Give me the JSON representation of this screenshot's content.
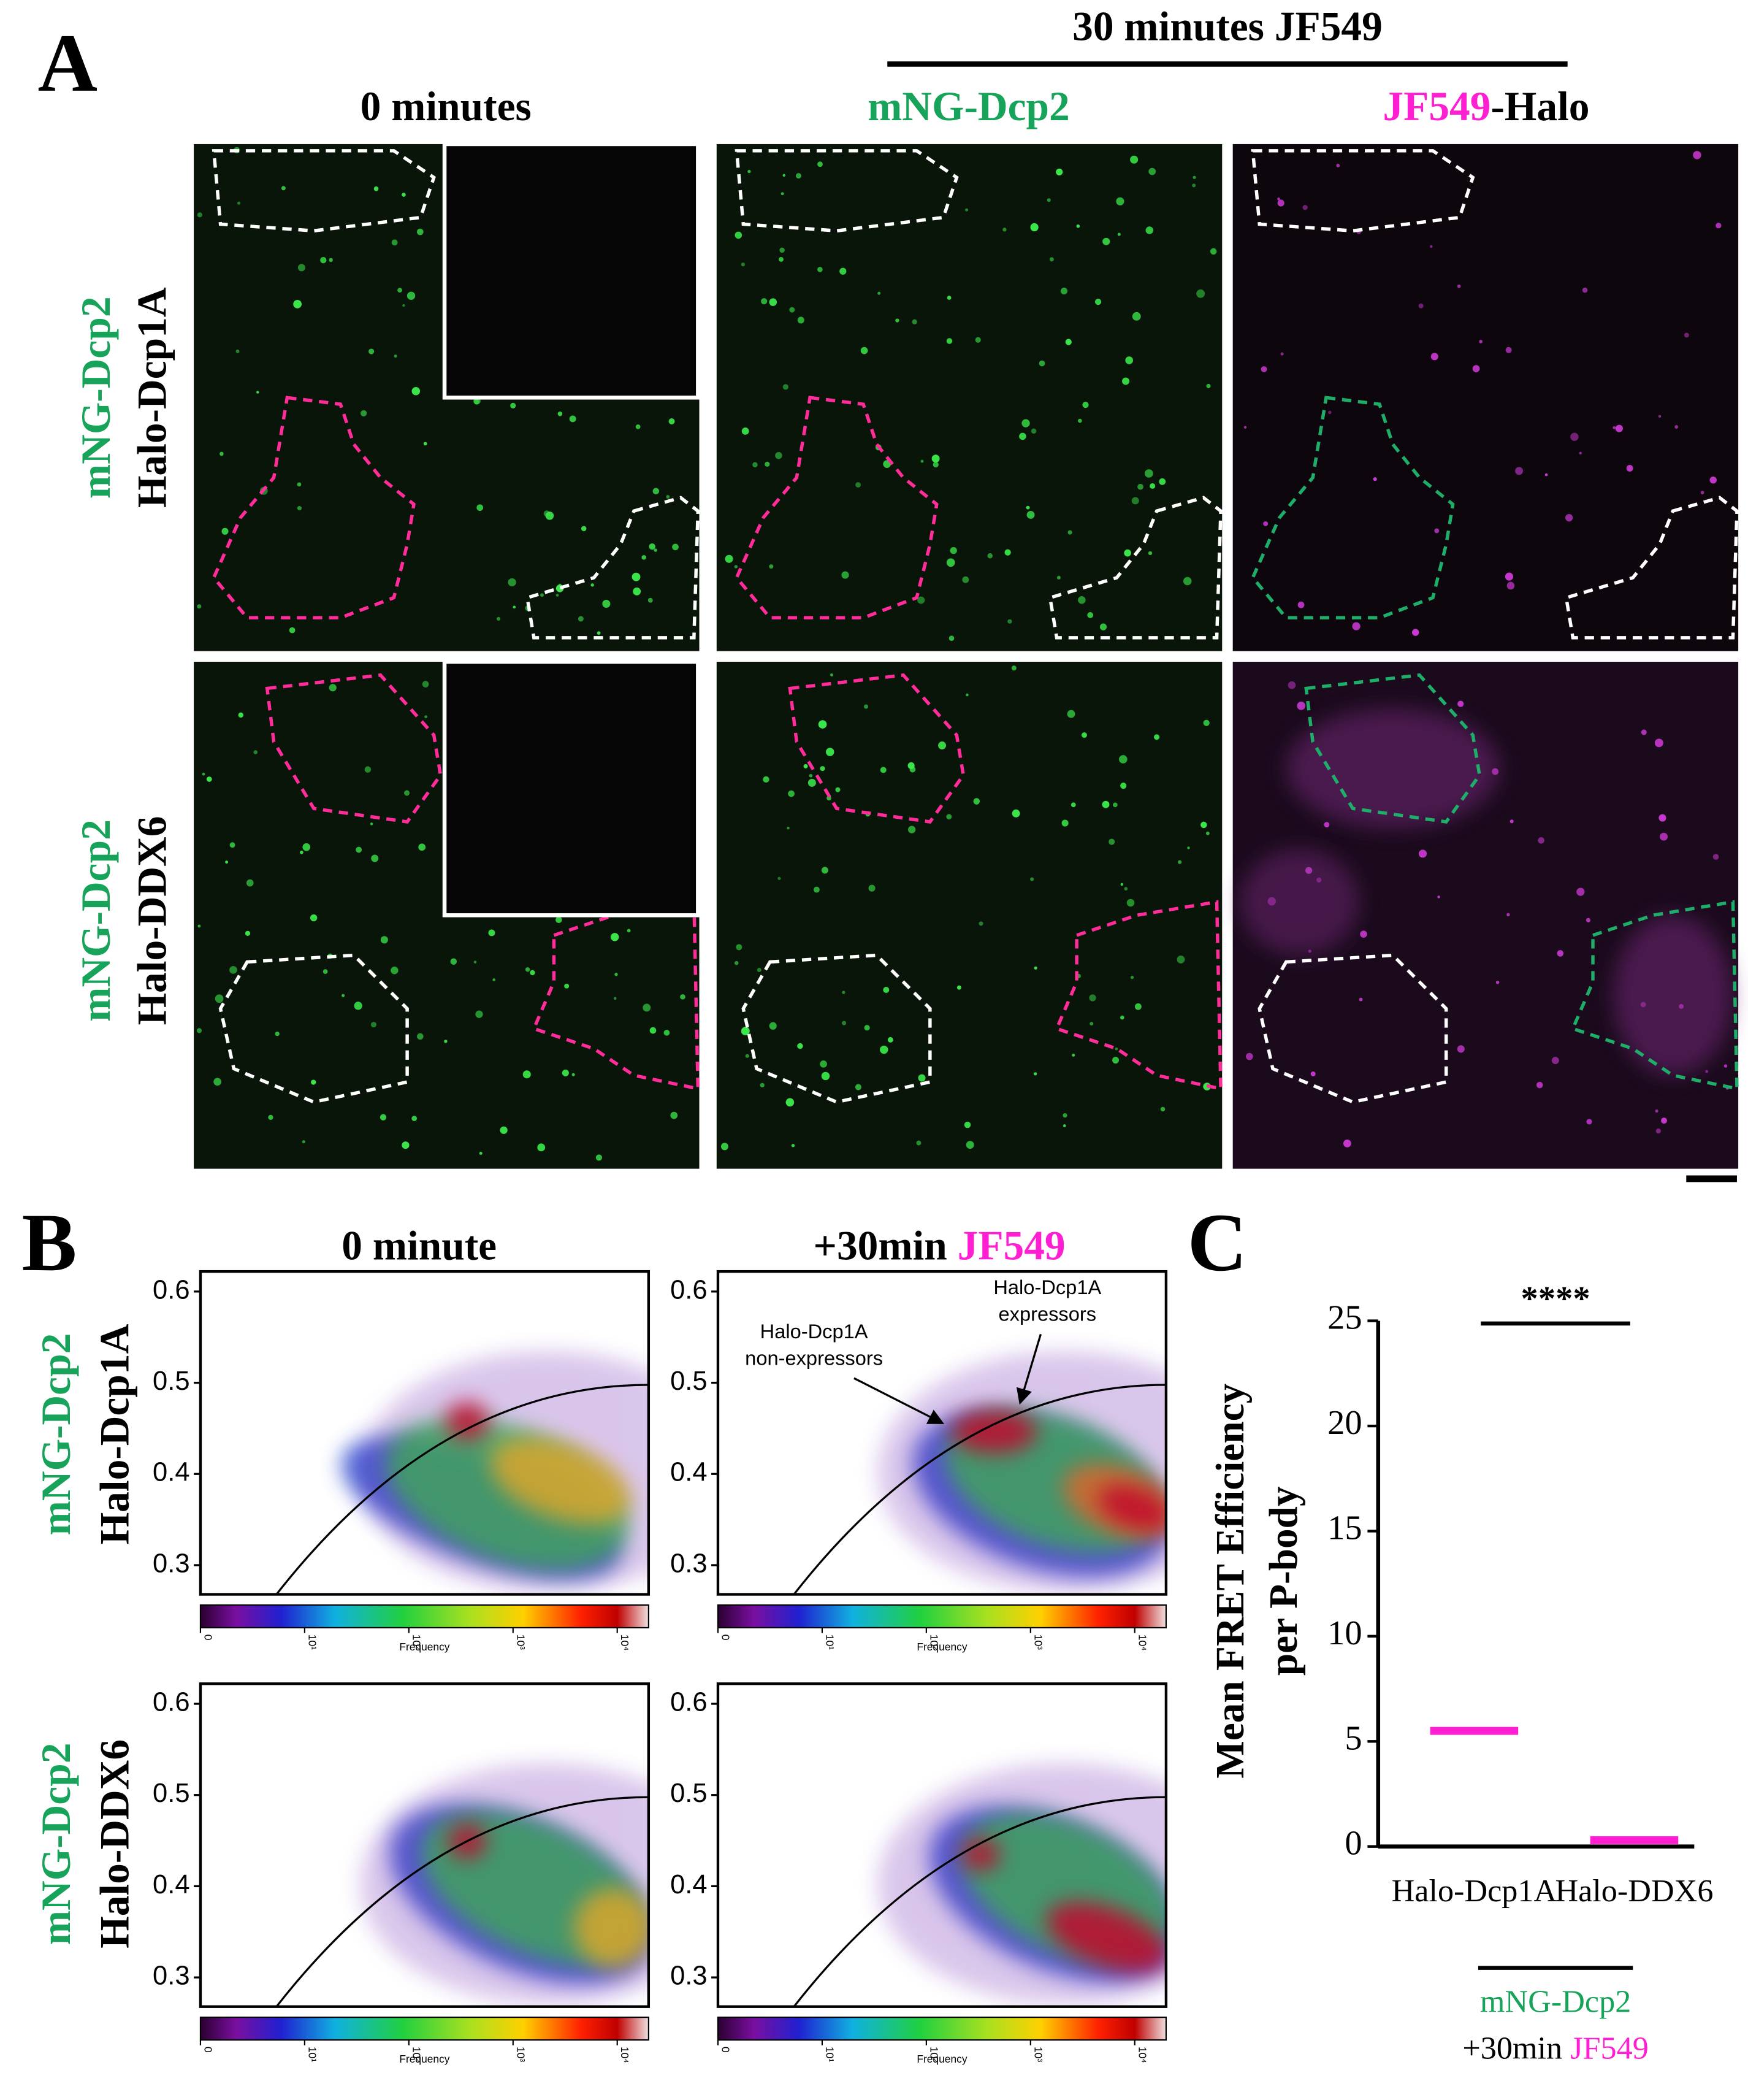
{
  "panel_a": {
    "letter": "A",
    "group_title": "30 minutes JF549",
    "column_0": "0 minutes",
    "column_1": "mNG-Dcp2",
    "column_2": {
      "dye": "JF549",
      "protein": "-Halo"
    },
    "rows": [
      {
        "reporter": "mNG-Dcp2",
        "partner": "Halo-Dcp1A"
      },
      {
        "reporter": "mNG-Dcp2",
        "partner": "Halo-DDX6"
      }
    ]
  },
  "panel_b": {
    "letter": "B",
    "column_0": "0 minute",
    "column_1": {
      "time": "+30min",
      "dye": "JF549"
    },
    "rows": [
      {
        "reporter": "mNG-Dcp2",
        "partner": "Halo-Dcp1A"
      },
      {
        "reporter": "mNG-Dcp2",
        "partner": "Halo-DDX6"
      }
    ],
    "ylim": [
      0.268,
      0.622
    ],
    "yticks": [
      0.3,
      0.4,
      0.5,
      0.6
    ],
    "clim": [
      0,
      20000
    ],
    "colorbar_ticks": [
      0,
      {
        "value": 10,
        "label": "10¹"
      },
      {
        "value": 100,
        "label": "10²"
      },
      {
        "value": 1000,
        "label": "10³"
      },
      {
        "value": 10000,
        "label": "10⁴"
      }
    ],
    "colorbar_label": "Frequency",
    "annotations": [
      [
        "Halo-Dcp1A",
        "non-expressors"
      ],
      [
        "Halo-Dcp1A",
        "expressors"
      ]
    ]
  },
  "chart_data": {
    "type": "strip",
    "letter": "C",
    "y_label": [
      "Mean FRET Efficiency",
      "per P-body"
    ],
    "significance": "****",
    "categories": [
      "Halo-Dcp1A",
      "Halo-DDX6"
    ],
    "values": [
      5.5,
      0.3
    ],
    "color": "#ff1fd2",
    "ylim": [
      0,
      25
    ],
    "yticks": [
      0,
      5,
      10,
      15,
      20,
      25
    ],
    "group_label": {
      "reporter": "mNG-Dcp2",
      "time": "+30min",
      "dye": "JF549"
    }
  }
}
